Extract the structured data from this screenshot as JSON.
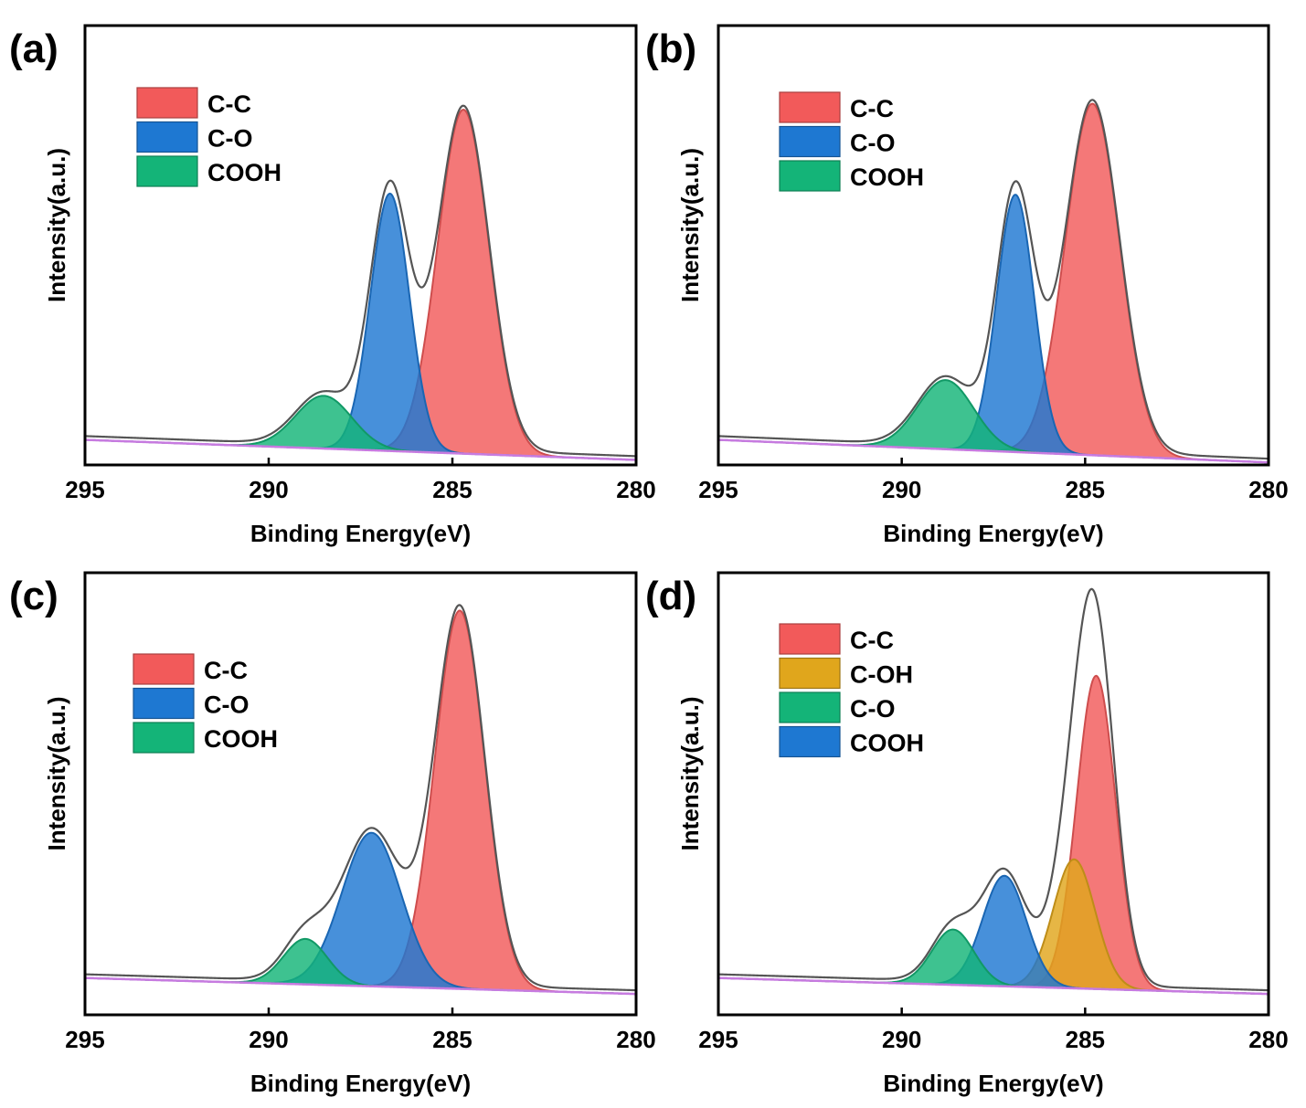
{
  "chart_data": [
    {
      "type": "area",
      "panel_label": "(a)",
      "xlabel": "Binding Energy(eV)",
      "ylabel": "Intensity(a.u.)",
      "xlim": [
        295,
        280
      ],
      "ylim": [
        -0.2,
        3.3
      ],
      "x_ticks": [
        "295",
        "290",
        "285",
        "280"
      ],
      "legend_position": "top-left",
      "background": {
        "start": 0.0,
        "end": -0.16
      },
      "series": [
        {
          "name": "C-C",
          "color": "#f25a5a",
          "center": 284.7,
          "amplitude": 2.74,
          "fwhm": 1.65
        },
        {
          "name": "C-O",
          "color": "#1e78d2",
          "center": 286.7,
          "amplitude": 2.05,
          "fwhm": 1.25
        },
        {
          "name": "COOH",
          "color": "#14b478",
          "center": 288.5,
          "amplitude": 0.42,
          "fwhm": 1.8
        }
      ],
      "legend_order": [
        "C-C",
        "C-O",
        "COOH"
      ]
    },
    {
      "type": "area",
      "panel_label": "(b)",
      "xlabel": "Binding Energy(eV)",
      "ylabel": "Intensity(a.u.)",
      "xlim": [
        295,
        280
      ],
      "ylim": [
        -0.2,
        3.3
      ],
      "x_ticks": [
        "295",
        "290",
        "285",
        "280"
      ],
      "legend_position": "top-left",
      "background": {
        "start": 0.0,
        "end": -0.18
      },
      "series": [
        {
          "name": "C-C",
          "color": "#f25a5a",
          "center": 284.8,
          "amplitude": 2.8,
          "fwhm": 1.75
        },
        {
          "name": "C-O",
          "color": "#1e78d2",
          "center": 286.9,
          "amplitude": 2.05,
          "fwhm": 1.2
        },
        {
          "name": "COOH",
          "color": "#14b478",
          "center": 288.8,
          "amplitude": 0.55,
          "fwhm": 1.8
        }
      ],
      "legend_order": [
        "C-C",
        "C-O",
        "COOH"
      ]
    },
    {
      "type": "area",
      "panel_label": "(c)",
      "xlabel": "Binding Energy(eV)",
      "ylabel": "Intensity(a.u.)",
      "xlim": [
        295,
        280
      ],
      "ylim": [
        -0.3,
        3.3
      ],
      "x_ticks": [
        "295",
        "290",
        "285",
        "280"
      ],
      "legend_position": "top-left",
      "background": {
        "start": 0.0,
        "end": -0.13
      },
      "series": [
        {
          "name": "C-C",
          "color": "#f25a5a",
          "center": 284.8,
          "amplitude": 3.08,
          "fwhm": 1.6
        },
        {
          "name": "C-O",
          "color": "#1e78d2",
          "center": 287.2,
          "amplitude": 1.25,
          "fwhm": 1.9
        },
        {
          "name": "COOH",
          "color": "#14b478",
          "center": 289.0,
          "amplitude": 0.37,
          "fwhm": 1.4
        }
      ],
      "legend_order": [
        "C-C",
        "C-O",
        "COOH"
      ]
    },
    {
      "type": "area",
      "panel_label": "(d)",
      "xlabel": "Binding Energy(eV)",
      "ylabel": "Intensity(a.u.)",
      "xlim": [
        295,
        280
      ],
      "ylim": [
        -0.3,
        3.3
      ],
      "x_ticks": [
        "295",
        "290",
        "285",
        "280"
      ],
      "legend_position": "top-left",
      "background": {
        "start": 0.0,
        "end": -0.13
      },
      "series": [
        {
          "name": "C-C",
          "color": "#f25a5a",
          "center": 284.7,
          "amplitude": 2.55,
          "fwhm": 1.25
        },
        {
          "name": "C-OH",
          "color": "#e0a61c",
          "center": 285.3,
          "amplitude": 1.05,
          "fwhm": 1.35
        },
        {
          "name": "COOH",
          "color": "#1e78d2",
          "center": 287.2,
          "amplitude": 0.9,
          "fwhm": 1.4
        },
        {
          "name": "C-O",
          "color": "#14b478",
          "center": 288.6,
          "amplitude": 0.45,
          "fwhm": 1.35
        }
      ],
      "legend_order": [
        "C-C",
        "C-OH",
        "C-O",
        "COOH"
      ]
    }
  ],
  "colors": {
    "envelope": "#555555",
    "background_line": "#c77be0",
    "axis": "#000000"
  }
}
